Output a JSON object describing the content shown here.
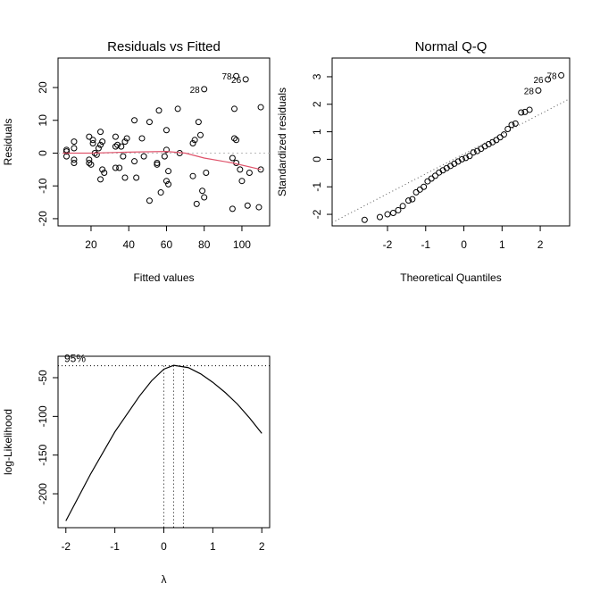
{
  "chart_data": [
    {
      "type": "scatter",
      "title": "Residuals vs Fitted",
      "x_label": "Fitted values",
      "y_label": "Residuals",
      "x": [
        7,
        7,
        7,
        11,
        11,
        11,
        11,
        19,
        19,
        19,
        20,
        21,
        21,
        22,
        23,
        24,
        25,
        25,
        25,
        26,
        26,
        27,
        33,
        33,
        33,
        34,
        35,
        36,
        37,
        38,
        38,
        39,
        43,
        43,
        44,
        47,
        48,
        51,
        51,
        55,
        55,
        56,
        57,
        59,
        60,
        60,
        60,
        61,
        61,
        66,
        67,
        74,
        74,
        75,
        76,
        77,
        78,
        79,
        80,
        81,
        95,
        95,
        96,
        96,
        97,
        97,
        99,
        100,
        103,
        104,
        109,
        110,
        110,
        80,
        97,
        102
      ],
      "y": [
        0.5,
        -1,
        1,
        3.5,
        1.5,
        -2,
        -3,
        5,
        -2,
        -3,
        -3.5,
        3,
        4,
        0,
        -0.5,
        1.5,
        6.5,
        -8,
        2.5,
        -5,
        3.5,
        -6,
        5,
        2,
        -4.5,
        2.5,
        -4.5,
        2,
        -1,
        3.5,
        -7.5,
        4.5,
        10,
        -2.5,
        -7.5,
        4.5,
        -1,
        -14.5,
        9.5,
        -3,
        -3.5,
        13,
        -12,
        -1,
        7,
        1,
        -8.5,
        -5.5,
        -9.5,
        13.5,
        0,
        3,
        -7,
        4,
        -15.5,
        9.5,
        5.5,
        -11.5,
        -13.5,
        -6,
        -1.5,
        -17,
        13.5,
        4.5,
        -3,
        4,
        -5,
        -8.5,
        -16,
        -6,
        -16.5,
        -5,
        14,
        19.5,
        23.5,
        22.5
      ],
      "color": "#000000",
      "reference_y": 0,
      "smooth": {
        "x": [
          5,
          20,
          40,
          60,
          70,
          80,
          95,
          110
        ],
        "y": [
          0,
          0,
          0.3,
          0.5,
          0,
          -1.5,
          -3,
          -5
        ],
        "color": "#df536b"
      },
      "annotations": [
        {
          "text": "28",
          "x": 80,
          "y": 19.5
        },
        {
          "text": "78",
          "x": 97,
          "y": 23.5
        },
        {
          "text": "26",
          "x": 102,
          "y": 22.5
        }
      ],
      "xlim": [
        2.5,
        114.7
      ],
      "ylim": [
        -22.2,
        29
      ],
      "xticks": [
        20,
        40,
        60,
        80,
        100
      ],
      "yticks": [
        -20,
        -10,
        0,
        10,
        20
      ]
    },
    {
      "type": "scatter",
      "title": "Normal Q-Q",
      "x_label": "Theoretical Quantiles",
      "y_label": "Standardized residuals",
      "x": [
        -2.6,
        -2.2,
        -2.0,
        -1.85,
        -1.72,
        -1.6,
        -1.45,
        -1.35,
        -1.25,
        -1.15,
        -1.05,
        -0.95,
        -0.85,
        -0.75,
        -0.65,
        -0.55,
        -0.45,
        -0.35,
        -0.25,
        -0.15,
        -0.05,
        0.05,
        0.15,
        0.25,
        0.35,
        0.45,
        0.55,
        0.65,
        0.75,
        0.85,
        0.95,
        1.05,
        1.15,
        1.25,
        1.35,
        1.5,
        1.6,
        1.72,
        1.95,
        2.2,
        2.55
      ],
      "y": [
        -2.2,
        -2.1,
        -2.0,
        -1.95,
        -1.85,
        -1.7,
        -1.5,
        -1.45,
        -1.2,
        -1.1,
        -1.0,
        -0.8,
        -0.7,
        -0.6,
        -0.48,
        -0.4,
        -0.32,
        -0.24,
        -0.16,
        -0.08,
        0.0,
        0.05,
        0.12,
        0.25,
        0.3,
        0.38,
        0.47,
        0.55,
        0.62,
        0.7,
        0.8,
        0.9,
        1.1,
        1.25,
        1.3,
        1.7,
        1.72,
        1.8,
        2.5,
        2.9,
        3.05
      ],
      "color": "#000000",
      "reference_line": {
        "x": [
          -3.45,
          2.77
        ],
        "y": [
          -2.3,
          2.2
        ]
      },
      "annotations": [
        {
          "text": "28",
          "x": 1.95,
          "y": 2.5
        },
        {
          "text": "26",
          "x": 2.2,
          "y": 2.9
        },
        {
          "text": "78",
          "x": 2.55,
          "y": 3.05
        }
      ],
      "xlim": [
        -3.45,
        2.77
      ],
      "ylim": [
        -2.42,
        3.68
      ],
      "xticks": [
        -2,
        -1,
        0,
        1,
        2
      ],
      "yticks": [
        -2,
        -1,
        0,
        1,
        2,
        3
      ]
    },
    {
      "type": "line",
      "x_label": "λ",
      "y_label": "log-Likelihood",
      "x": [
        -2,
        -1.5,
        -1,
        -0.5,
        -0.25,
        0,
        0.2,
        0.5,
        0.75,
        1,
        1.25,
        1.5,
        1.75,
        2
      ],
      "y": [
        -235,
        -175,
        -120,
        -74,
        -54,
        -39,
        -34,
        -37,
        -45,
        -56,
        -69,
        -84,
        -102,
        -122
      ],
      "color": "#000000",
      "ci_level": -34.5,
      "ci_label": "95%",
      "ci_lambdas": [
        0,
        0.2,
        0.4
      ],
      "xlim": [
        -2.16,
        2.16
      ],
      "ylim": [
        -243.8,
        -22.3
      ],
      "xticks": [
        -2,
        -1,
        0,
        1,
        2
      ],
      "yticks": [
        -200,
        -150,
        -100,
        -50
      ]
    }
  ]
}
